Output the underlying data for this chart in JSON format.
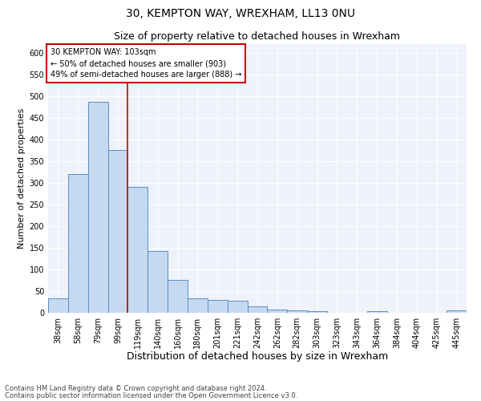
{
  "title1": "30, KEMPTON WAY, WREXHAM, LL13 0NU",
  "title2": "Size of property relative to detached houses in Wrexham",
  "xlabel": "Distribution of detached houses by size in Wrexham",
  "ylabel": "Number of detached properties",
  "categories": [
    "38sqm",
    "58sqm",
    "79sqm",
    "99sqm",
    "119sqm",
    "140sqm",
    "160sqm",
    "180sqm",
    "201sqm",
    "221sqm",
    "242sqm",
    "262sqm",
    "282sqm",
    "303sqm",
    "323sqm",
    "343sqm",
    "364sqm",
    "384sqm",
    "404sqm",
    "425sqm",
    "445sqm"
  ],
  "values": [
    33,
    320,
    487,
    375,
    290,
    143,
    76,
    33,
    30,
    27,
    15,
    7,
    5,
    4,
    0,
    0,
    4,
    0,
    0,
    0,
    5
  ],
  "bar_color": "#c5d9f0",
  "bar_edge_color": "#5b8ec4",
  "vline_x_index": 3,
  "vline_color": "#cc0000",
  "annotation_title": "30 KEMPTON WAY: 103sqm",
  "annotation_line1": "← 50% of detached houses are smaller (903)",
  "annotation_line2": "49% of semi-detached houses are larger (888) →",
  "annotation_box_color": "#ffffff",
  "annotation_box_edge": "#cc0000",
  "footnote1": "Contains HM Land Registry data © Crown copyright and database right 2024.",
  "footnote2": "Contains public sector information licensed under the Open Government Licence v3.0.",
  "ylim": [
    0,
    620
  ],
  "yticks": [
    0,
    50,
    100,
    150,
    200,
    250,
    300,
    350,
    400,
    450,
    500,
    550,
    600
  ],
  "bg_color": "#eef2fa",
  "fig_bg_color": "#ffffff",
  "title1_fontsize": 10,
  "title2_fontsize": 9,
  "xlabel_fontsize": 9,
  "ylabel_fontsize": 8,
  "tick_fontsize": 7,
  "annotation_fontsize": 7,
  "footnote_fontsize": 6
}
